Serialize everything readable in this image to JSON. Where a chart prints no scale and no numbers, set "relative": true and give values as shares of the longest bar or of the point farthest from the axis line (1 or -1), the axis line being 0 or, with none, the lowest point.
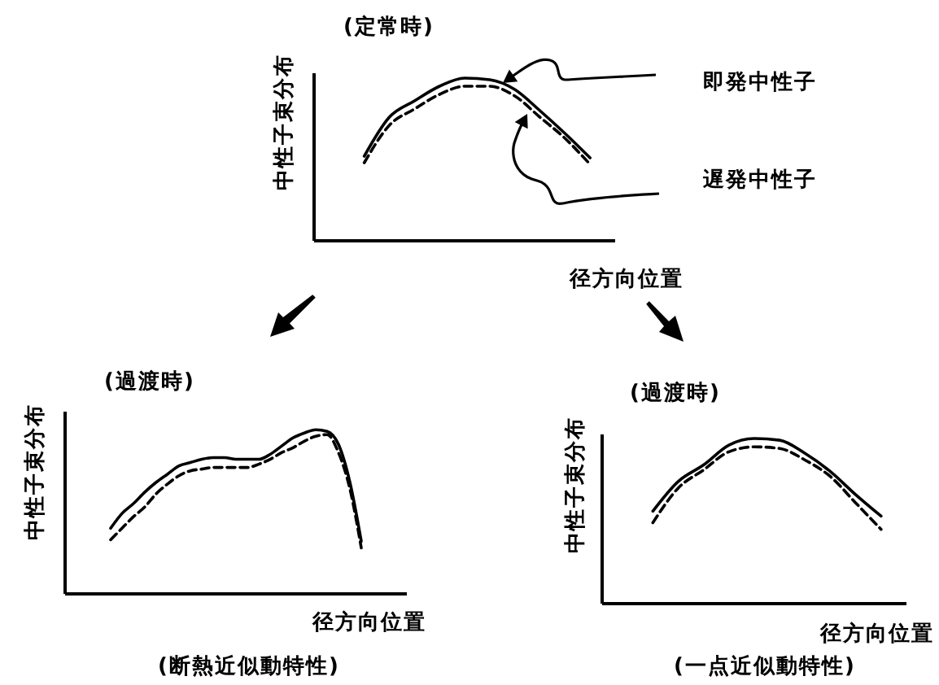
{
  "chart_data": [
    {
      "type": "line",
      "title": "(定常時)",
      "ylabel": "中性子束分布",
      "xlabel": "径方向位置",
      "relative": true,
      "marker": "none",
      "categories": [
        null,
        null,
        null,
        null,
        null,
        null,
        null,
        null,
        null,
        null,
        null,
        null,
        null
      ],
      "series": [
        {
          "name": "即発中性子",
          "color": "#000000",
          "line_style": "solid",
          "values": [
            null,
            null,
            0.52,
            0.76,
            0.86,
            0.95,
            1,
            0.99,
            0.93,
            0.8,
            0.66,
            0.51,
            null
          ]
        },
        {
          "name": "遅発中性子",
          "color": "#000000",
          "line_style": "dashed",
          "values": [
            null,
            null,
            0.48,
            0.71,
            0.81,
            0.9,
            0.95,
            0.95,
            0.89,
            0.76,
            0.63,
            0.47,
            null
          ]
        }
      ]
    },
    {
      "type": "line",
      "title": "(過渡時)",
      "ylabel": "中性子束分布",
      "xlabel": "径方向位置",
      "relative": true,
      "marker": "none",
      "annotations": [
        "(断熱近似動特性)"
      ],
      "categories": [
        null,
        null,
        null,
        null,
        null,
        null,
        null,
        null,
        null,
        null,
        null,
        null,
        null,
        null,
        null,
        null,
        null,
        null,
        null,
        null,
        null,
        null,
        null,
        null,
        null,
        null,
        null,
        null,
        null,
        null,
        null
      ],
      "series": [
        {
          "color": "#000000",
          "line_style": "solid",
          "values": [
            null,
            null,
            null,
            null,
            0.4,
            0.49,
            0.55,
            0.62,
            0.68,
            0.73,
            0.78,
            0.8,
            0.82,
            0.83,
            0.83,
            0.82,
            0.82,
            0.82,
            0.85,
            0.9,
            0.95,
            0.98,
            1,
            0.99,
            0.91,
            0.68,
            0.32,
            null,
            null,
            null,
            null
          ]
        },
        {
          "color": "#000000",
          "line_style": "dashed",
          "values": [
            null,
            null,
            null,
            null,
            0.33,
            0.4,
            0.47,
            0.53,
            0.61,
            0.67,
            0.72,
            0.75,
            0.76,
            0.77,
            0.77,
            0.77,
            0.77,
            0.79,
            0.82,
            0.86,
            0.89,
            0.93,
            0.96,
            0.97,
            0.86,
            0.64,
            0.28,
            null,
            null,
            null,
            null
          ]
        }
      ]
    },
    {
      "type": "line",
      "title": "(過渡時)",
      "ylabel": "中性子束分布",
      "xlabel": "径方向位置",
      "relative": true,
      "marker": "none",
      "annotations": [
        "(一点近似動特性)"
      ],
      "categories": [
        null,
        null,
        null,
        null,
        null,
        null,
        null,
        null,
        null,
        null,
        null,
        null,
        null
      ],
      "series": [
        {
          "color": "#000000",
          "line_style": "solid",
          "values": [
            null,
            null,
            0.56,
            0.74,
            0.84,
            0.96,
            1,
            0.99,
            0.91,
            0.8,
            0.66,
            0.53,
            null
          ]
        },
        {
          "color": "#000000",
          "line_style": "dashed",
          "values": [
            null,
            null,
            0.49,
            0.7,
            0.81,
            0.92,
            0.95,
            0.94,
            0.87,
            0.77,
            0.61,
            0.45,
            null
          ]
        }
      ]
    }
  ]
}
